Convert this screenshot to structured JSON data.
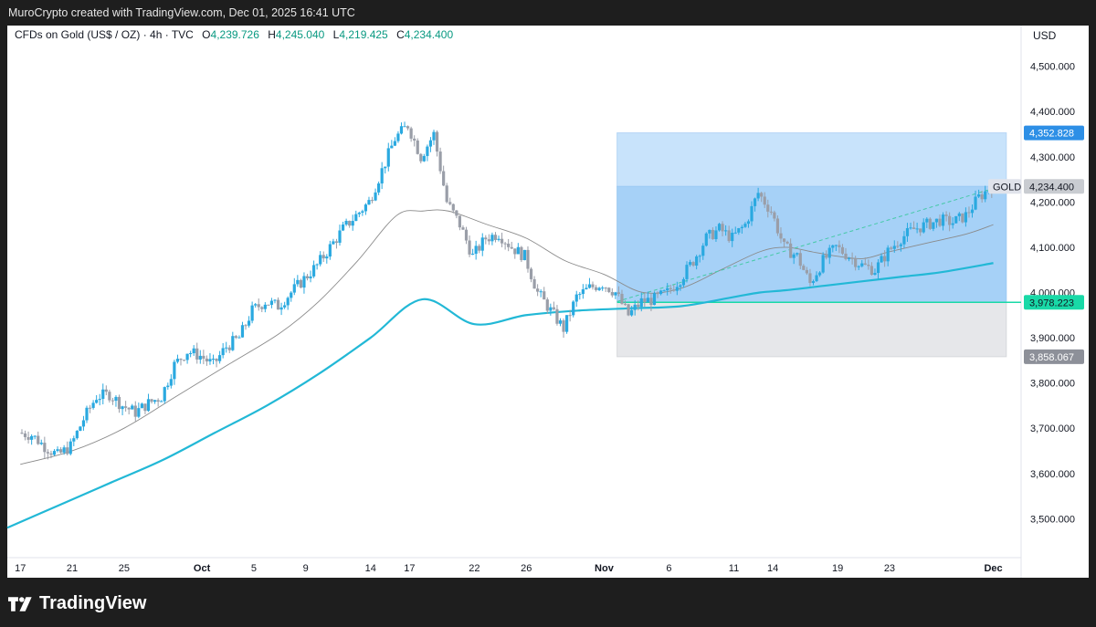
{
  "header": {
    "credit": "MuroCrypto created with TradingView.com, Dec 01, 2025 16:41 UTC",
    "symbol": "CFDs on Gold (US$ / OZ) · 4h · TVC",
    "o_label": "O",
    "o_value": "4,239.726",
    "h_label": "H",
    "h_value": "4,245.040",
    "l_label": "L",
    "l_value": "4,219.425",
    "c_label": "C",
    "c_value": "4,234.400",
    "currency": "USD"
  },
  "branding": {
    "logo_text": "TradingView",
    "logo_icon": "tradingview-logo-icon"
  },
  "colors": {
    "up": "#2aa9e0",
    "down": "#9a9ea8",
    "ema_fast": "#8a8a8a",
    "ema_slow": "#22b8d6",
    "zone_top": "#c8e3fb",
    "zone_mid": "#a6d1f7",
    "zone_low": "#e6e7ea",
    "support_line": "#19d9a7",
    "trend_line": "#45c9a6",
    "badge_blue": "#2d8fe6",
    "badge_gray": "#c9ccd1",
    "badge_dark": "#8d9099"
  },
  "chart_data": {
    "type": "candlestick",
    "symbol_tag": "GOLD",
    "ylim": [
      3420,
      4590
    ],
    "y_ticks": [
      3500,
      3600,
      3700,
      3800,
      3900,
      4000,
      4100,
      4200,
      4300,
      4400,
      4500
    ],
    "y_tick_labels": [
      "3,500.000",
      "3,600.000",
      "3,700.000",
      "3,800.000",
      "3,900.000",
      "4,000.000",
      "4,100.000",
      "4,200.000",
      "4,300.000",
      "4,400.000",
      "4,500.000"
    ],
    "x_ticks": [
      {
        "label": "17",
        "day": 0
      },
      {
        "label": "21",
        "day": 4
      },
      {
        "label": "25",
        "day": 8
      },
      {
        "label": "Oct",
        "day": 14,
        "bold": true
      },
      {
        "label": "5",
        "day": 18
      },
      {
        "label": "9",
        "day": 22
      },
      {
        "label": "14",
        "day": 27
      },
      {
        "label": "17",
        "day": 30
      },
      {
        "label": "22",
        "day": 35
      },
      {
        "label": "26",
        "day": 39
      },
      {
        "label": "Nov",
        "day": 45,
        "bold": true
      },
      {
        "label": "6",
        "day": 50
      },
      {
        "label": "11",
        "day": 55
      },
      {
        "label": "14",
        "day": 58
      },
      {
        "label": "19",
        "day": 63
      },
      {
        "label": "23",
        "day": 67
      },
      {
        "label": "Dec",
        "day": 75,
        "bold": true
      }
    ],
    "x_range_days": [
      -1,
      77
    ],
    "price_path": [
      [
        0,
        3690
      ],
      [
        1,
        3685
      ],
      [
        2,
        3660
      ],
      [
        3,
        3640
      ],
      [
        4,
        3660
      ],
      [
        5,
        3720
      ],
      [
        6,
        3770
      ],
      [
        7,
        3775
      ],
      [
        8,
        3750
      ],
      [
        9,
        3735
      ],
      [
        10,
        3755
      ],
      [
        11,
        3770
      ],
      [
        12,
        3840
      ],
      [
        13,
        3870
      ],
      [
        14,
        3860
      ],
      [
        15,
        3840
      ],
      [
        16,
        3880
      ],
      [
        17,
        3900
      ],
      [
        18,
        3960
      ],
      [
        19,
        3980
      ],
      [
        20,
        3970
      ],
      [
        21,
        4000
      ],
      [
        22,
        4030
      ],
      [
        23,
        4060
      ],
      [
        24,
        4100
      ],
      [
        25,
        4140
      ],
      [
        26,
        4170
      ],
      [
        27,
        4200
      ],
      [
        28,
        4270
      ],
      [
        29,
        4340
      ],
      [
        30,
        4370
      ],
      [
        31,
        4300
      ],
      [
        32,
        4350
      ],
      [
        33,
        4200
      ],
      [
        34,
        4150
      ],
      [
        35,
        4080
      ],
      [
        36,
        4120
      ],
      [
        37,
        4130
      ],
      [
        38,
        4100
      ],
      [
        39,
        4080
      ],
      [
        40,
        4000
      ],
      [
        41,
        3960
      ],
      [
        42,
        3920
      ],
      [
        43,
        3990
      ],
      [
        44,
        4010
      ],
      [
        45,
        4020
      ],
      [
        46,
        4000
      ],
      [
        47,
        3950
      ],
      [
        48,
        3980
      ],
      [
        49,
        3985
      ],
      [
        50,
        4000
      ],
      [
        51,
        4030
      ],
      [
        52,
        4070
      ],
      [
        53,
        4120
      ],
      [
        54,
        4140
      ],
      [
        55,
        4120
      ],
      [
        56,
        4150
      ],
      [
        57,
        4220
      ],
      [
        58,
        4180
      ],
      [
        59,
        4100
      ],
      [
        60,
        4080
      ],
      [
        61,
        4020
      ],
      [
        62,
        4070
      ],
      [
        63,
        4100
      ],
      [
        64,
        4080
      ],
      [
        65,
        4060
      ],
      [
        66,
        4050
      ],
      [
        67,
        4090
      ],
      [
        68,
        4120
      ],
      [
        69,
        4140
      ],
      [
        70,
        4150
      ],
      [
        71,
        4160
      ],
      [
        72,
        4155
      ],
      [
        73,
        4170
      ],
      [
        74,
        4210
      ],
      [
        75,
        4234
      ]
    ],
    "ema_fast": [
      [
        0,
        3620
      ],
      [
        4,
        3650
      ],
      [
        8,
        3700
      ],
      [
        12,
        3770
      ],
      [
        16,
        3840
      ],
      [
        20,
        3910
      ],
      [
        23,
        3980
      ],
      [
        26,
        4070
      ],
      [
        29,
        4170
      ],
      [
        31,
        4180
      ],
      [
        33,
        4180
      ],
      [
        36,
        4150
      ],
      [
        39,
        4120
      ],
      [
        42,
        4070
      ],
      [
        45,
        4040
      ],
      [
        48,
        4000
      ],
      [
        51,
        4010
      ],
      [
        54,
        4050
      ],
      [
        57,
        4090
      ],
      [
        59,
        4100
      ],
      [
        61,
        4090
      ],
      [
        63,
        4080
      ],
      [
        65,
        4075
      ],
      [
        67,
        4090
      ],
      [
        70,
        4110
      ],
      [
        73,
        4130
      ],
      [
        75,
        4150
      ]
    ],
    "ema_slow": [
      [
        -1,
        3480
      ],
      [
        3,
        3530
      ],
      [
        7,
        3580
      ],
      [
        11,
        3630
      ],
      [
        15,
        3690
      ],
      [
        19,
        3750
      ],
      [
        23,
        3820
      ],
      [
        27,
        3900
      ],
      [
        31,
        3985
      ],
      [
        35,
        3930
      ],
      [
        39,
        3950
      ],
      [
        43,
        3960
      ],
      [
        47,
        3965
      ],
      [
        51,
        3970
      ],
      [
        55,
        3990
      ],
      [
        57,
        4000
      ],
      [
        59,
        4005
      ],
      [
        62,
        4015
      ],
      [
        65,
        4025
      ],
      [
        68,
        4035
      ],
      [
        71,
        4045
      ],
      [
        75,
        4065
      ]
    ],
    "trend_line": [
      [
        46,
        3980
      ],
      [
        75,
        4230
      ]
    ],
    "zone": {
      "x_start_day": 46,
      "x_end_day": 76,
      "top": 4352.828,
      "upper_mid": 4234.4,
      "support": 3978.223,
      "bottom": 3858.067
    },
    "price_labels": [
      {
        "value": 4352.828,
        "text": "4,352.828",
        "style": "blue"
      },
      {
        "value": 4234.4,
        "text": "4,234.400",
        "style": "gray",
        "tag": "GOLD"
      },
      {
        "value": 3978.223,
        "text": "3,978.223",
        "style": "green"
      },
      {
        "value": 3858.067,
        "text": "3,858.067",
        "style": "dark"
      }
    ]
  }
}
